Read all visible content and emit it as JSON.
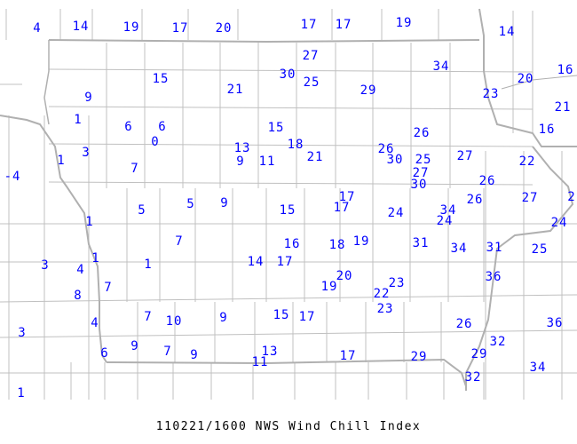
{
  "title": "110221/1600 NWS Wind Chill Index",
  "colors": {
    "values": "#0000ff",
    "county_lines": "#c0c0c0",
    "state_lines": "#b0b0b0",
    "background": "#ffffff"
  },
  "station_values": [
    "4",
    "14",
    "19",
    "17",
    "20",
    "17",
    "17",
    "19",
    "14",
    "27",
    "30",
    "25",
    "34",
    "20",
    "16",
    "23",
    "21",
    "15",
    "29",
    "9",
    "21",
    "1",
    "6",
    "6",
    "0",
    "15",
    "16",
    "13",
    "18",
    "9",
    "11",
    "21",
    "26",
    "30",
    "25",
    "26",
    "27",
    "22",
    "3",
    "1",
    "7",
    "-4",
    "27",
    "30",
    "26",
    "17",
    "17",
    "15",
    "5",
    "5",
    "9",
    "26",
    "27",
    "2",
    "24",
    "34",
    "24",
    "24",
    "1",
    "16",
    "18",
    "19",
    "31",
    "34",
    "31",
    "25",
    "7",
    "14",
    "17",
    "1",
    "1",
    "3",
    "4",
    "7",
    "8",
    "19",
    "20",
    "23",
    "22",
    "36",
    "23",
    "15",
    "17",
    "7",
    "10",
    "9",
    "4",
    "26",
    "36",
    "3",
    "32",
    "9",
    "7",
    "9",
    "6",
    "13",
    "11",
    "17",
    "29",
    "29",
    "34",
    "32",
    "1"
  ]
}
